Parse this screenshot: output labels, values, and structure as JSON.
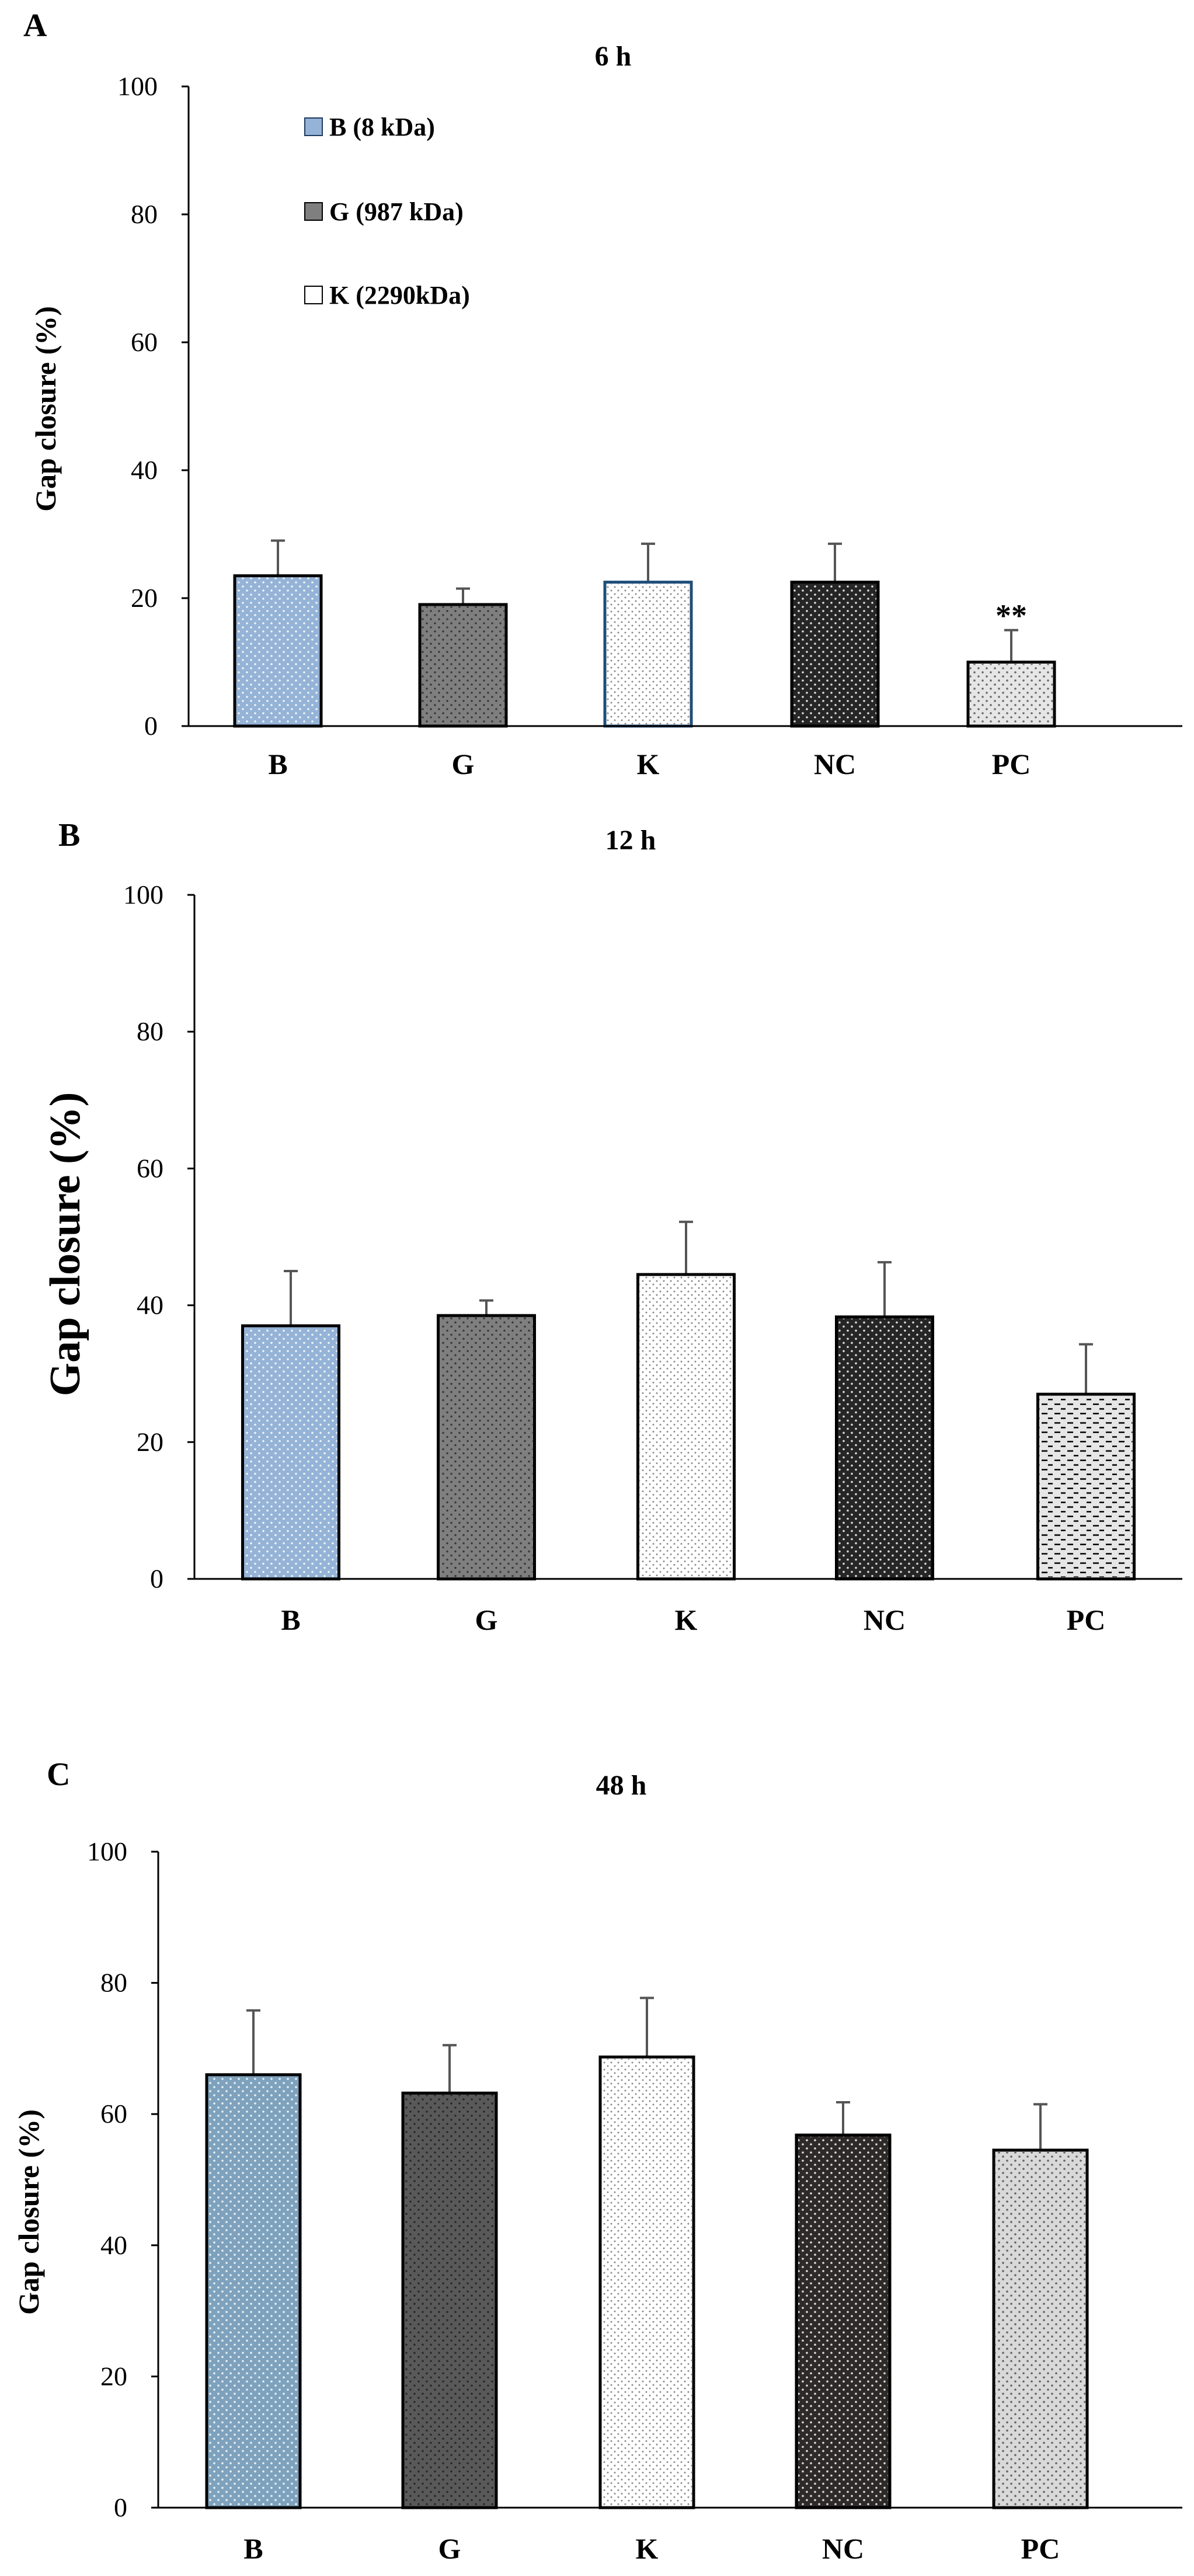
{
  "chart_data": [
    {
      "panel": "A",
      "type": "bar",
      "title": "6 h",
      "ylabel": "Gap closure (%)",
      "xlabel": "",
      "ylim": [
        0,
        100
      ],
      "yticks": [
        0,
        20,
        40,
        60,
        80,
        100
      ],
      "categories": [
        "B",
        "G",
        "K",
        "NC",
        "PC"
      ],
      "values": [
        23.5,
        19,
        22.5,
        22.5,
        10
      ],
      "errors": [
        5.5,
        2.5,
        6,
        6,
        5
      ],
      "annotations": [
        {
          "category": "PC",
          "text": "**"
        }
      ],
      "legend": [
        {
          "label": "B (8 kDa)",
          "color": "#95b3d7"
        },
        {
          "label": "G (987 kDa)",
          "color": "#7f7f7f"
        },
        {
          "label": "K (2290kDa)",
          "color": "#ffffff"
        }
      ],
      "legend_position": "top-left"
    },
    {
      "panel": "B",
      "type": "bar",
      "title": "12 h",
      "ylabel": "Gap closure (%)",
      "xlabel": "",
      "ylim": [
        0,
        100
      ],
      "yticks": [
        0,
        20,
        40,
        60,
        80,
        100
      ],
      "categories": [
        "B",
        "G",
        "K",
        "NC",
        "PC"
      ],
      "values": [
        37,
        38.5,
        44.5,
        38.3,
        27
      ],
      "errors": [
        8,
        2.2,
        7.7,
        8,
        7.3
      ]
    },
    {
      "panel": "C",
      "type": "bar",
      "title": "48 h",
      "ylabel": "Gap closure (%)",
      "xlabel": "",
      "ylim": [
        0,
        100
      ],
      "yticks": [
        0,
        20,
        40,
        60,
        80,
        100
      ],
      "categories": [
        "B",
        "G",
        "K",
        "NC",
        "PC"
      ],
      "values": [
        66,
        63.2,
        68.7,
        56.8,
        54.5
      ],
      "errors": [
        9.8,
        7.3,
        9,
        5,
        7
      ]
    }
  ],
  "colors": {
    "B": "#95b3d7",
    "G": "#7f7f7f",
    "K": "#ffffff",
    "NC": "#262626",
    "PC": "#e6e6e6",
    "B_48h": "#7ea2bd",
    "G_48h": "#595959",
    "NC_48h": "#2e2a2a",
    "PC_48h": "#d9d9d9",
    "K_outline_6h": "#1f4e79"
  }
}
